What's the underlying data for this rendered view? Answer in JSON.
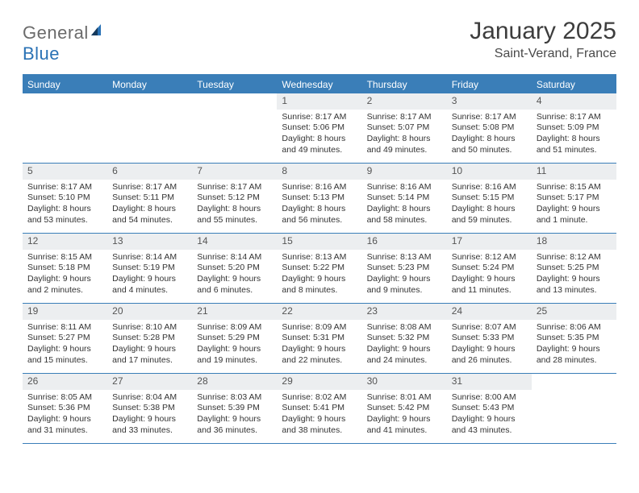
{
  "brand": {
    "part1": "General",
    "part2": "Blue"
  },
  "title": "January 2025",
  "location": "Saint-Verand, France",
  "colors": {
    "header_bg": "#3a7eb8",
    "daynum_bg": "#eceef0",
    "text": "#333333",
    "brand_gray": "#6b6b6b",
    "brand_blue": "#2a72b5"
  },
  "fonts": {
    "title_size": 30,
    "location_size": 16,
    "dayhead_size": 12,
    "cell_size": 10.5
  },
  "dayheads": [
    "Sunday",
    "Monday",
    "Tuesday",
    "Wednesday",
    "Thursday",
    "Friday",
    "Saturday"
  ],
  "weeks": [
    [
      {
        "empty": true
      },
      {
        "empty": true
      },
      {
        "empty": true
      },
      {
        "n": "1",
        "sr": "Sunrise: 8:17 AM",
        "ss": "Sunset: 5:06 PM",
        "d1": "Daylight: 8 hours",
        "d2": "and 49 minutes."
      },
      {
        "n": "2",
        "sr": "Sunrise: 8:17 AM",
        "ss": "Sunset: 5:07 PM",
        "d1": "Daylight: 8 hours",
        "d2": "and 49 minutes."
      },
      {
        "n": "3",
        "sr": "Sunrise: 8:17 AM",
        "ss": "Sunset: 5:08 PM",
        "d1": "Daylight: 8 hours",
        "d2": "and 50 minutes."
      },
      {
        "n": "4",
        "sr": "Sunrise: 8:17 AM",
        "ss": "Sunset: 5:09 PM",
        "d1": "Daylight: 8 hours",
        "d2": "and 51 minutes."
      }
    ],
    [
      {
        "n": "5",
        "sr": "Sunrise: 8:17 AM",
        "ss": "Sunset: 5:10 PM",
        "d1": "Daylight: 8 hours",
        "d2": "and 53 minutes."
      },
      {
        "n": "6",
        "sr": "Sunrise: 8:17 AM",
        "ss": "Sunset: 5:11 PM",
        "d1": "Daylight: 8 hours",
        "d2": "and 54 minutes."
      },
      {
        "n": "7",
        "sr": "Sunrise: 8:17 AM",
        "ss": "Sunset: 5:12 PM",
        "d1": "Daylight: 8 hours",
        "d2": "and 55 minutes."
      },
      {
        "n": "8",
        "sr": "Sunrise: 8:16 AM",
        "ss": "Sunset: 5:13 PM",
        "d1": "Daylight: 8 hours",
        "d2": "and 56 minutes."
      },
      {
        "n": "9",
        "sr": "Sunrise: 8:16 AM",
        "ss": "Sunset: 5:14 PM",
        "d1": "Daylight: 8 hours",
        "d2": "and 58 minutes."
      },
      {
        "n": "10",
        "sr": "Sunrise: 8:16 AM",
        "ss": "Sunset: 5:15 PM",
        "d1": "Daylight: 8 hours",
        "d2": "and 59 minutes."
      },
      {
        "n": "11",
        "sr": "Sunrise: 8:15 AM",
        "ss": "Sunset: 5:17 PM",
        "d1": "Daylight: 9 hours",
        "d2": "and 1 minute."
      }
    ],
    [
      {
        "n": "12",
        "sr": "Sunrise: 8:15 AM",
        "ss": "Sunset: 5:18 PM",
        "d1": "Daylight: 9 hours",
        "d2": "and 2 minutes."
      },
      {
        "n": "13",
        "sr": "Sunrise: 8:14 AM",
        "ss": "Sunset: 5:19 PM",
        "d1": "Daylight: 9 hours",
        "d2": "and 4 minutes."
      },
      {
        "n": "14",
        "sr": "Sunrise: 8:14 AM",
        "ss": "Sunset: 5:20 PM",
        "d1": "Daylight: 9 hours",
        "d2": "and 6 minutes."
      },
      {
        "n": "15",
        "sr": "Sunrise: 8:13 AM",
        "ss": "Sunset: 5:22 PM",
        "d1": "Daylight: 9 hours",
        "d2": "and 8 minutes."
      },
      {
        "n": "16",
        "sr": "Sunrise: 8:13 AM",
        "ss": "Sunset: 5:23 PM",
        "d1": "Daylight: 9 hours",
        "d2": "and 9 minutes."
      },
      {
        "n": "17",
        "sr": "Sunrise: 8:12 AM",
        "ss": "Sunset: 5:24 PM",
        "d1": "Daylight: 9 hours",
        "d2": "and 11 minutes."
      },
      {
        "n": "18",
        "sr": "Sunrise: 8:12 AM",
        "ss": "Sunset: 5:25 PM",
        "d1": "Daylight: 9 hours",
        "d2": "and 13 minutes."
      }
    ],
    [
      {
        "n": "19",
        "sr": "Sunrise: 8:11 AM",
        "ss": "Sunset: 5:27 PM",
        "d1": "Daylight: 9 hours",
        "d2": "and 15 minutes."
      },
      {
        "n": "20",
        "sr": "Sunrise: 8:10 AM",
        "ss": "Sunset: 5:28 PM",
        "d1": "Daylight: 9 hours",
        "d2": "and 17 minutes."
      },
      {
        "n": "21",
        "sr": "Sunrise: 8:09 AM",
        "ss": "Sunset: 5:29 PM",
        "d1": "Daylight: 9 hours",
        "d2": "and 19 minutes."
      },
      {
        "n": "22",
        "sr": "Sunrise: 8:09 AM",
        "ss": "Sunset: 5:31 PM",
        "d1": "Daylight: 9 hours",
        "d2": "and 22 minutes."
      },
      {
        "n": "23",
        "sr": "Sunrise: 8:08 AM",
        "ss": "Sunset: 5:32 PM",
        "d1": "Daylight: 9 hours",
        "d2": "and 24 minutes."
      },
      {
        "n": "24",
        "sr": "Sunrise: 8:07 AM",
        "ss": "Sunset: 5:33 PM",
        "d1": "Daylight: 9 hours",
        "d2": "and 26 minutes."
      },
      {
        "n": "25",
        "sr": "Sunrise: 8:06 AM",
        "ss": "Sunset: 5:35 PM",
        "d1": "Daylight: 9 hours",
        "d2": "and 28 minutes."
      }
    ],
    [
      {
        "n": "26",
        "sr": "Sunrise: 8:05 AM",
        "ss": "Sunset: 5:36 PM",
        "d1": "Daylight: 9 hours",
        "d2": "and 31 minutes."
      },
      {
        "n": "27",
        "sr": "Sunrise: 8:04 AM",
        "ss": "Sunset: 5:38 PM",
        "d1": "Daylight: 9 hours",
        "d2": "and 33 minutes."
      },
      {
        "n": "28",
        "sr": "Sunrise: 8:03 AM",
        "ss": "Sunset: 5:39 PM",
        "d1": "Daylight: 9 hours",
        "d2": "and 36 minutes."
      },
      {
        "n": "29",
        "sr": "Sunrise: 8:02 AM",
        "ss": "Sunset: 5:41 PM",
        "d1": "Daylight: 9 hours",
        "d2": "and 38 minutes."
      },
      {
        "n": "30",
        "sr": "Sunrise: 8:01 AM",
        "ss": "Sunset: 5:42 PM",
        "d1": "Daylight: 9 hours",
        "d2": "and 41 minutes."
      },
      {
        "n": "31",
        "sr": "Sunrise: 8:00 AM",
        "ss": "Sunset: 5:43 PM",
        "d1": "Daylight: 9 hours",
        "d2": "and 43 minutes."
      },
      {
        "empty": true
      }
    ]
  ]
}
